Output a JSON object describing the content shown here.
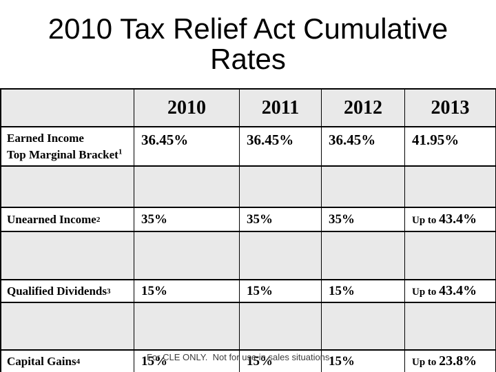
{
  "title": {
    "line1": "2010 Tax Relief Act Cumulative",
    "line2": "Rates"
  },
  "colors": {
    "row_band": "#e9e9e9",
    "border": "#000000",
    "watermark_text": "#3d3d3d"
  },
  "watermark": "For CLE ONLY.  Not for use in sales situations",
  "table": {
    "year_headers": [
      "2010",
      "2011",
      "2012",
      "2013"
    ],
    "rows": [
      {
        "label": "Earned Income",
        "label2": "Top Marginal Bracket",
        "footnote": "1",
        "values": [
          {
            "prefix": "",
            "value": "36.45%"
          },
          {
            "prefix": "",
            "value": "36.45%"
          },
          {
            "prefix": "",
            "value": "36.45%"
          },
          {
            "prefix": "",
            "value": "41.95%"
          }
        ]
      },
      {
        "label": "Unearned Income",
        "label2": "",
        "footnote": "2",
        "values": [
          {
            "prefix": "",
            "value": "35%"
          },
          {
            "prefix": "",
            "value": "35%"
          },
          {
            "prefix": "",
            "value": "35%"
          },
          {
            "prefix": "Up to ",
            "value": "43.4%"
          }
        ]
      },
      {
        "label": "Qualified Dividends",
        "label2": "",
        "footnote": "3",
        "values": [
          {
            "prefix": "",
            "value": "15%"
          },
          {
            "prefix": "",
            "value": "15%"
          },
          {
            "prefix": "",
            "value": "15%"
          },
          {
            "prefix": "Up to ",
            "value": "43.4%"
          }
        ]
      },
      {
        "label": "Capital Gains",
        "label2": "",
        "footnote": "4",
        "values": [
          {
            "prefix": "",
            "value": "15%"
          },
          {
            "prefix": "",
            "value": "15%"
          },
          {
            "prefix": "",
            "value": "15%"
          },
          {
            "prefix": "Up to ",
            "value": "23.8%"
          }
        ]
      }
    ]
  }
}
